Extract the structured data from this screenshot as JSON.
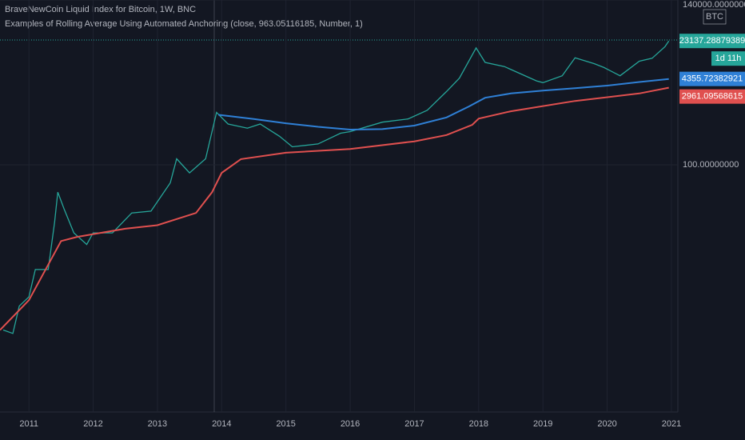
{
  "chart_data": {
    "type": "line",
    "title": "BraveNewCoin Liquid Index for Bitcoin, 1W, BNC",
    "subtitle": "Examples of Rolling Average Using Automated Anchoring (close, 963.05116185, Number, 1)",
    "symbol_badge": "BTC",
    "countdown": "1d 11h",
    "log_scale": true,
    "grid": true,
    "xlim": [
      2010.55,
      2021.1
    ],
    "xticks": [
      2011,
      2012,
      2013,
      2014,
      2015,
      2016,
      2017,
      2018,
      2019,
      2020,
      2021
    ],
    "ylim": [
      0.0019,
      140000
    ],
    "yticks": [
      {
        "value": 100,
        "label": "100.00000000"
      },
      {
        "value": 140000,
        "label": "140000.00000000"
      }
    ],
    "series": [
      {
        "color": "#26a69a",
        "x": [
          2010.6,
          2010.75,
          2010.85,
          2011.0,
          2011.1,
          2011.3,
          2011.4,
          2011.45,
          2011.55,
          2011.7,
          2011.9,
          2012.0,
          2012.3,
          2012.6,
          2012.9,
          2013.2,
          2013.3,
          2013.5,
          2013.75,
          2013.92,
          2014.1,
          2014.4,
          2014.6,
          2014.9,
          2015.1,
          2015.5,
          2015.85,
          2016.0,
          2016.5,
          2016.9,
          2017.2,
          2017.5,
          2017.7,
          2017.96,
          2018.1,
          2018.4,
          2018.9,
          2019.0,
          2019.3,
          2019.5,
          2019.8,
          2019.95,
          2020.2,
          2020.5,
          2020.7,
          2020.9,
          2020.96
        ],
        "values": [
          0.07,
          0.06,
          0.2,
          0.3,
          1.0,
          1.0,
          8,
          30,
          14,
          5,
          3,
          5,
          5,
          12,
          13,
          45,
          130,
          70,
          130,
          1000,
          600,
          500,
          600,
          350,
          220,
          250,
          400,
          430,
          650,
          750,
          1100,
          2500,
          4500,
          17000,
          9000,
          7500,
          4000,
          3700,
          5000,
          11000,
          8500,
          7200,
          5000,
          9500,
          10800,
          18000,
          23137.28879389
        ]
      },
      {
        "color": "#2f80d6",
        "x": [
          2013.95,
          2014.5,
          2015.0,
          2015.5,
          2016.0,
          2016.5,
          2017.0,
          2017.5,
          2017.85,
          2018.1,
          2018.5,
          2019.0,
          2019.5,
          2020.0,
          2020.5,
          2020.96
        ],
        "values": [
          900,
          750,
          620,
          530,
          470,
          480,
          560,
          800,
          1300,
          1900,
          2300,
          2600,
          2900,
          3250,
          3800,
          4355.72382921
        ]
      },
      {
        "color": "#e0504f",
        "x": [
          2010.55,
          2011.0,
          2011.5,
          2011.75,
          2012.5,
          2013.0,
          2013.6,
          2013.85,
          2014.0,
          2014.3,
          2015.0,
          2016.0,
          2017.0,
          2017.5,
          2017.9,
          2018.0,
          2018.5,
          2019.5,
          2020.5,
          2020.96
        ],
        "values": [
          0.07,
          0.26,
          3.5,
          4.2,
          6,
          7,
          12,
          30,
          70,
          128,
          170,
          200,
          280,
          370,
          580,
          760,
          1050,
          1650,
          2300,
          2961.09568615
        ]
      }
    ]
  }
}
